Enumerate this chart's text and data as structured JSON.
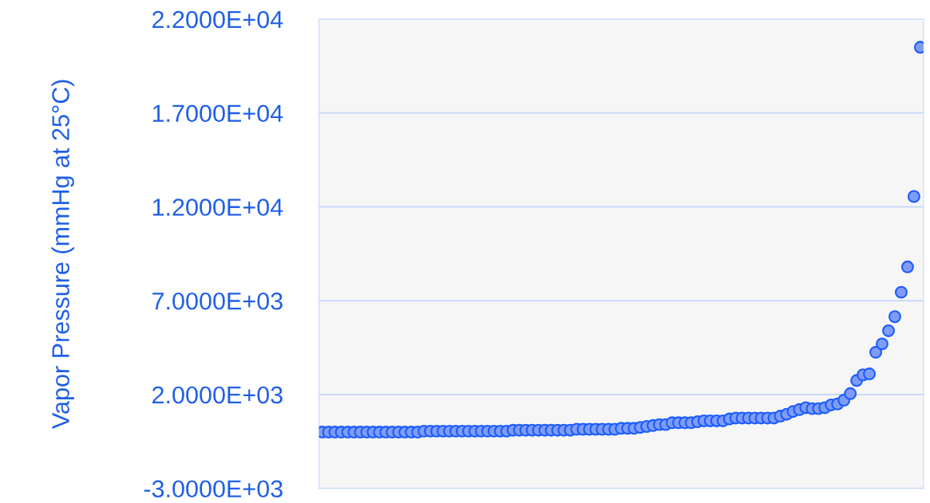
{
  "chart_data": {
    "type": "scatter",
    "ylabel": "Vapor Pressure (mmHg at 25°C)",
    "categories": [
      null,
      null,
      null,
      null,
      null,
      null,
      null,
      null,
      null,
      null,
      null,
      null,
      null,
      null,
      null,
      null,
      null,
      null,
      null,
      null,
      null,
      null,
      null,
      null,
      null,
      null,
      null,
      null,
      null,
      null,
      null,
      null,
      null,
      null,
      null,
      null,
      null,
      null,
      null,
      null,
      null,
      null,
      null,
      null,
      null,
      null,
      null,
      null,
      null,
      null,
      null,
      null,
      null,
      null,
      null,
      null,
      null,
      null,
      null,
      null,
      null,
      null,
      null,
      null,
      null,
      null,
      null,
      null,
      null,
      null,
      null,
      null,
      null,
      null,
      null,
      null,
      null,
      null,
      null,
      null,
      null,
      null,
      null,
      null,
      null,
      null,
      null,
      null,
      null,
      null,
      null,
      null,
      null,
      null,
      null
    ],
    "series": [
      {
        "color": "#7f9cf5",
        "values": [
          0,
          0,
          0,
          0,
          0,
          0,
          0,
          0,
          0,
          0,
          0,
          0,
          0,
          0,
          0,
          0,
          50,
          50,
          50,
          50,
          50,
          50,
          50,
          50,
          50,
          50,
          50,
          50,
          50,
          50,
          100,
          100,
          100,
          100,
          100,
          100,
          100,
          100,
          100,
          100,
          150,
          150,
          150,
          150,
          150,
          150,
          150,
          200,
          200,
          200,
          250,
          300,
          350,
          400,
          400,
          500,
          500,
          500,
          500,
          550,
          600,
          600,
          600,
          600,
          700,
          750,
          750,
          750,
          750,
          750,
          750,
          750,
          850,
          950,
          1100,
          1200,
          1300,
          1250,
          1250,
          1300,
          1450,
          1500,
          1700,
          2050,
          2750,
          3050,
          3100,
          4250,
          4700,
          5400,
          6150,
          7450,
          8800,
          12550,
          20500
        ]
      }
    ],
    "marker": "circle",
    "ylim": [
      -3000,
      22000
    ],
    "yticks": [
      {
        "value": -3000,
        "label": "-3.0000E+03"
      },
      {
        "value": 2000,
        "label": "2.0000E+03"
      },
      {
        "value": 7000,
        "label": "7.0000E+03"
      },
      {
        "value": 12000,
        "label": "1.2000E+04"
      },
      {
        "value": 17000,
        "label": "1.7000E+04"
      },
      {
        "value": 22000,
        "label": "2.2000E+04"
      }
    ],
    "tick_labels": "y",
    "grid": "y",
    "legend": false
  }
}
